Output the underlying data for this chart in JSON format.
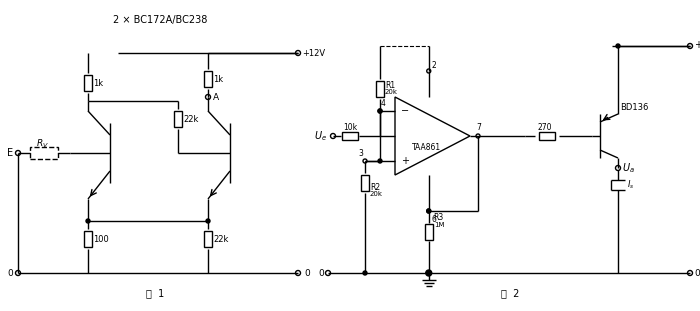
{
  "title1": "2 × BC172A/BC238",
  "fig1_label": "图  1",
  "fig2_label": "图  2",
  "bg_color": "#ffffff",
  "line_color": "#000000",
  "line_width": 1.0,
  "fig_width": 7.0,
  "fig_height": 3.11
}
